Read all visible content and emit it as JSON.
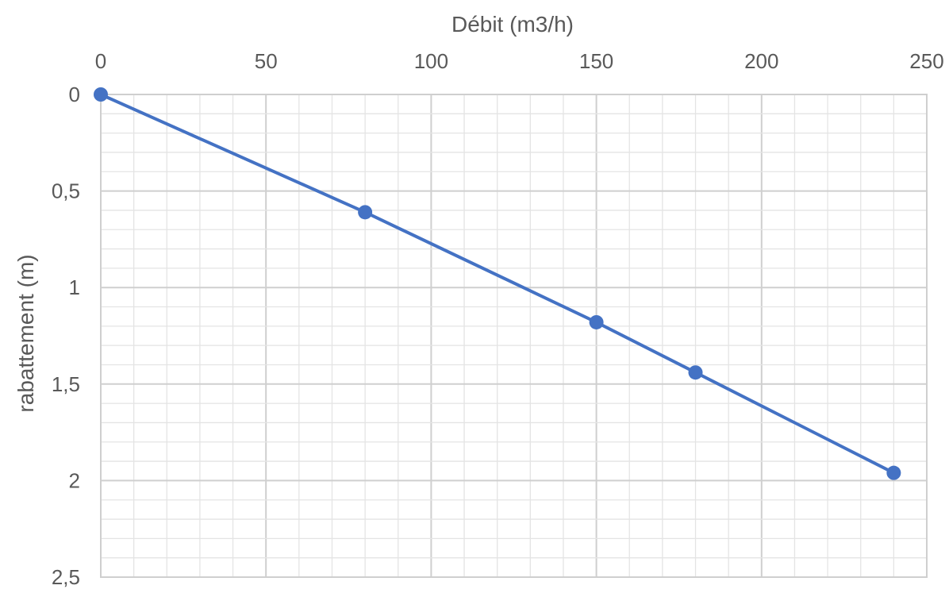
{
  "chart_data": {
    "type": "line",
    "title": "",
    "xlabel": "Débit (m3/h)",
    "ylabel": "rabattement (m)",
    "x_axis_position": "top",
    "y_axis_reversed": true,
    "xlim": [
      0,
      250
    ],
    "ylim": [
      0,
      2.5
    ],
    "x_ticks": [
      "0",
      "50",
      "100",
      "150",
      "200",
      "250"
    ],
    "y_ticks": [
      "0",
      "0,5",
      "1",
      "1,5",
      "2",
      "2,5"
    ],
    "grid": true,
    "minor_grid": true,
    "legend": "none",
    "series": [
      {
        "color": "#4472C4",
        "marker": "circle",
        "points": [
          {
            "x": 0,
            "y": 0
          },
          {
            "x": 80,
            "y": 0.61
          },
          {
            "x": 150,
            "y": 1.18
          },
          {
            "x": 180,
            "y": 1.44
          },
          {
            "x": 240,
            "y": 1.96
          }
        ]
      }
    ]
  }
}
